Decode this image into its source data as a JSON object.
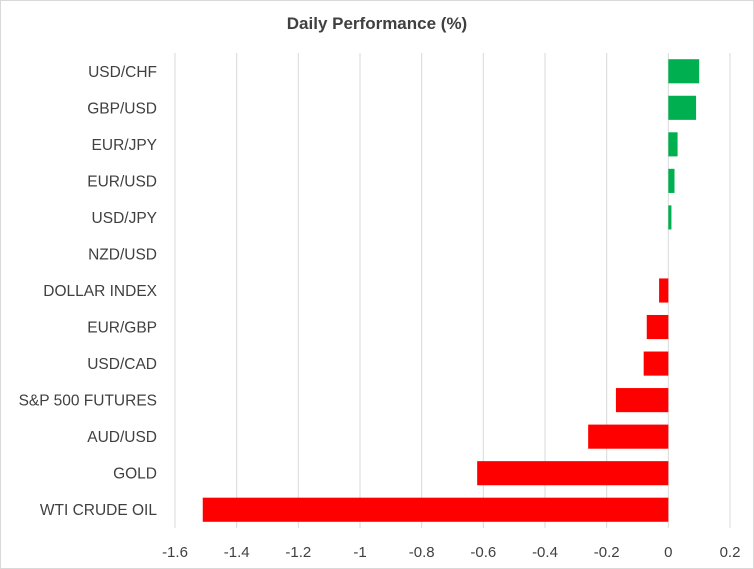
{
  "chart_data": {
    "type": "bar",
    "orientation": "horizontal",
    "title": "Daily Performance (%)",
    "xlabel": "",
    "ylabel": "",
    "xlim": [
      -1.6,
      0.2
    ],
    "x_ticks": [
      -1.6,
      -1.4,
      -1.2,
      -1,
      -0.8,
      -0.6,
      -0.4,
      -0.2,
      0,
      0.2
    ],
    "grid": "vertical",
    "legend": "none",
    "categories": [
      "USD/CHF",
      "GBP/USD",
      "EUR/JPY",
      "EUR/USD",
      "USD/JPY",
      "NZD/USD",
      "DOLLAR INDEX",
      "EUR/GBP",
      "USD/CAD",
      "S&P 500 FUTURES",
      "AUD/USD",
      "GOLD",
      "WTI CRUDE OIL"
    ],
    "values": [
      0.1,
      0.09,
      0.03,
      0.02,
      0.01,
      0.0,
      -0.03,
      -0.07,
      -0.08,
      -0.17,
      -0.26,
      -0.62,
      -1.51
    ],
    "colors": {
      "positive": "#00b050",
      "negative": "#ff0000",
      "grid": "#d9d9d9",
      "text": "#404040"
    }
  }
}
